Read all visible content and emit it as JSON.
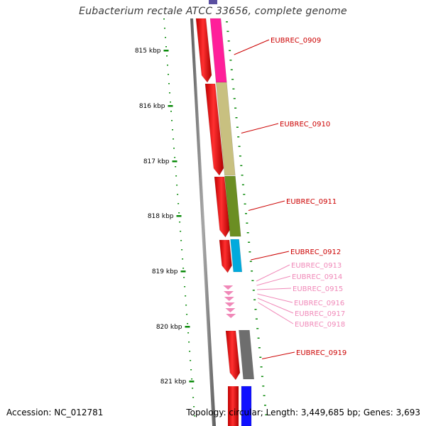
{
  "title": "Eubacterium rectale ATCC 33656, complete genome",
  "footer": {
    "accession": "Accession: NC_012781",
    "topology": "Topology: circular; Length: 3,449,685 bp; Genes: 3,693"
  },
  "colors": {
    "backbone": "#808080",
    "forward_strand": "#ff0000",
    "tick": "#0a8a0a",
    "gene_label": "#cc0000",
    "small_gene_label": "#f088b8"
  },
  "ruler": {
    "unit": "kbp",
    "labels": [
      "815 kbp",
      "816 kbp",
      "817 kbp",
      "818 kbp",
      "819 kbp",
      "820 kbp",
      "821 kbp"
    ]
  },
  "genes": [
    {
      "id": "EUBREC_0909",
      "color": "#ff1f9a",
      "label_color": "#cc0000"
    },
    {
      "id": "EUBREC_0910",
      "color": "#c8c080",
      "label_color": "#cc0000"
    },
    {
      "id": "EUBREC_0911",
      "color": "#6b8e23",
      "label_color": "#cc0000"
    },
    {
      "id": "EUBREC_0912",
      "color": "#00aadd",
      "label_color": "#cc0000"
    },
    {
      "id": "EUBREC_0913",
      "color": "#f088b8",
      "label_color": "#f088b8"
    },
    {
      "id": "EUBREC_0914",
      "color": "#f088b8",
      "label_color": "#f088b8"
    },
    {
      "id": "EUBREC_0915",
      "color": "#f088b8",
      "label_color": "#f088b8"
    },
    {
      "id": "EUBREC_0916",
      "color": "#f088b8",
      "label_color": "#f088b8"
    },
    {
      "id": "EUBREC_0917",
      "color": "#f088b8",
      "label_color": "#f088b8"
    },
    {
      "id": "EUBREC_0918",
      "color": "#f088b8",
      "label_color": "#f088b8"
    },
    {
      "id": "EUBREC_0919",
      "color": "#6e6e6e",
      "label_color": "#cc0000"
    }
  ],
  "edge_features": {
    "top_segment_color": "#5a4fa0",
    "bottom_segment_color": "#1010ff"
  }
}
